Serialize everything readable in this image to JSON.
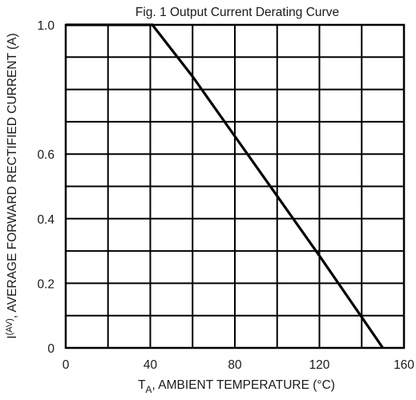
{
  "chart_data": {
    "type": "line",
    "title": "Fig. 1  Output Current Derating Curve",
    "xlabel": {
      "main": "T",
      "subscript": "A",
      "rest": ", AMBIENT TEMPERATURE (°C)"
    },
    "ylabel": {
      "main": "I",
      "superscript": "(AV)",
      "rest": ", AVERAGE FORWARD RECTIFIED CURRENT (A)"
    },
    "xlim": [
      0,
      160
    ],
    "ylim": [
      0,
      1.0
    ],
    "x_ticks": [
      0,
      40,
      80,
      120,
      160
    ],
    "x_tick_labels": [
      "0",
      "40",
      "80",
      "120",
      "160"
    ],
    "x_grid": [
      0,
      20,
      40,
      60,
      80,
      100,
      120,
      140,
      160
    ],
    "y_ticks": [
      0,
      0.2,
      0.4,
      0.6,
      1.0
    ],
    "y_tick_labels": [
      "0",
      "0.2",
      "0.4",
      "0.6",
      "1.0"
    ],
    "y_grid": [
      0,
      0.1,
      0.2,
      0.3,
      0.4,
      0.5,
      0.6,
      0.7,
      0.8,
      0.9,
      1.0
    ],
    "grid": true,
    "legend": "none",
    "series": [
      {
        "x": [
          0,
          40,
          41,
          60,
          80,
          100,
          120,
          140,
          150
        ],
        "y": [
          1.0,
          1.0,
          1.0,
          0.84,
          0.655,
          0.47,
          0.285,
          0.095,
          0.0
        ]
      }
    ]
  }
}
